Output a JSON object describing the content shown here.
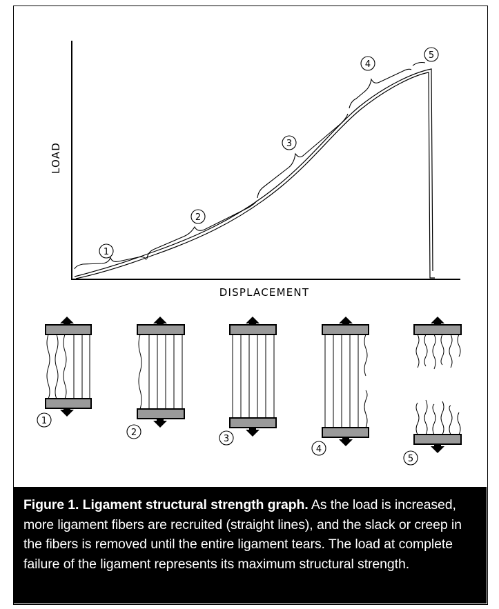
{
  "diagram": {
    "axis_y_label": "LOAD",
    "axis_x_label": "DISPLACEMENT",
    "stage_numbers": [
      "1",
      "2",
      "3",
      "4",
      "5"
    ]
  },
  "caption": {
    "title": "Figure 1. Ligament structural strength graph.",
    "body": " As the load is increased, more ligament fibers are recruited (straight lines), and the slack or creep in the fibers is removed until the entire ligament tears. The load at complete failure of the ligament represents its maximum structural strength."
  },
  "colors": {
    "plate_fill": "#9a9a9a",
    "ink": "#000000",
    "caption_bg": "#000000",
    "caption_text": "#ffffff"
  }
}
